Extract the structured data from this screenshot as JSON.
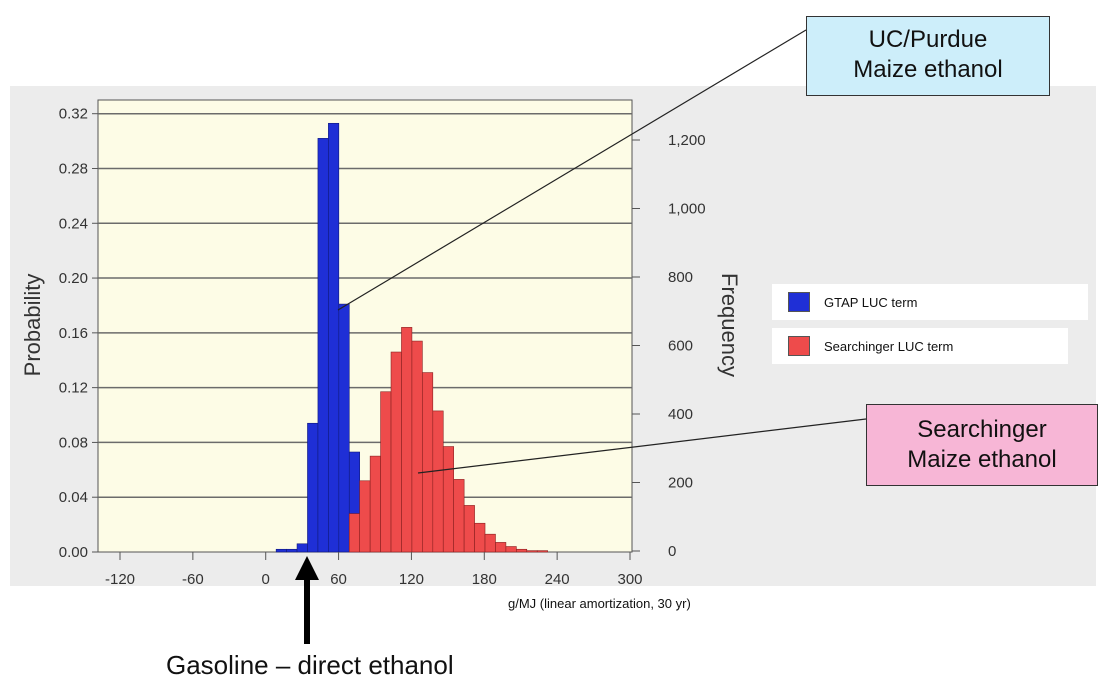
{
  "chart_data": {
    "type": "bar",
    "x_ticks": [
      "-120",
      "-60",
      "0",
      "60",
      "120",
      "180",
      "240",
      "300"
    ],
    "x_range": [
      -120,
      300
    ],
    "xlabel": "g/MJ (linear amortization, 30 yr)",
    "y_left": {
      "label": "Probability",
      "range": [
        0,
        0.33
      ],
      "ticks": [
        "0.00",
        "0.04",
        "0.08",
        "0.12",
        "0.16",
        "0.20",
        "0.24",
        "0.28",
        "0.32"
      ]
    },
    "y_right": {
      "label": "Frequency",
      "ticks": [
        "0",
        "200",
        "400",
        "600",
        "800",
        "1,000",
        "1,200"
      ]
    },
    "grid": "horizontal",
    "bin_width": 8.6,
    "series": [
      {
        "name": "GTAP LUC term",
        "color": "#1f2fd6",
        "bins": [
          {
            "x": 12.9,
            "y": 0.002
          },
          {
            "x": 21.5,
            "y": 0.002
          },
          {
            "x": 30.1,
            "y": 0.006
          },
          {
            "x": 38.7,
            "y": 0.094
          },
          {
            "x": 47.3,
            "y": 0.302
          },
          {
            "x": 55.9,
            "y": 0.313
          },
          {
            "x": 64.5,
            "y": 0.181
          },
          {
            "x": 73.1,
            "y": 0.073
          },
          {
            "x": 81.7,
            "y": 0.015
          }
        ]
      },
      {
        "name": "Searchinger LUC term",
        "color": "#ee4b4b",
        "bins": [
          {
            "x": 73.1,
            "y": 0.028
          },
          {
            "x": 81.7,
            "y": 0.052
          },
          {
            "x": 90.3,
            "y": 0.07
          },
          {
            "x": 98.9,
            "y": 0.117
          },
          {
            "x": 107.5,
            "y": 0.146
          },
          {
            "x": 116.1,
            "y": 0.164
          },
          {
            "x": 124.7,
            "y": 0.154
          },
          {
            "x": 133.3,
            "y": 0.131
          },
          {
            "x": 141.9,
            "y": 0.103
          },
          {
            "x": 150.5,
            "y": 0.077
          },
          {
            "x": 159.1,
            "y": 0.053
          },
          {
            "x": 167.7,
            "y": 0.034
          },
          {
            "x": 176.3,
            "y": 0.021
          },
          {
            "x": 184.9,
            "y": 0.013
          },
          {
            "x": 193.5,
            "y": 0.007
          },
          {
            "x": 202.1,
            "y": 0.004
          },
          {
            "x": 210.7,
            "y": 0.002
          },
          {
            "x": 219.3,
            "y": 0.001
          },
          {
            "x": 227.9,
            "y": 0.001
          }
        ]
      }
    ]
  },
  "legend": {
    "items": [
      {
        "label": "GTAP LUC term",
        "color": "#1f2fd6"
      },
      {
        "label": "Searchinger LUC term",
        "color": "#ee4b4b"
      }
    ]
  },
  "annotations": {
    "purdue": {
      "line1": "UC/Purdue",
      "line2": "Maize ethanol"
    },
    "searchinger": {
      "line1": "Searchinger",
      "line2": "Maize ethanol"
    },
    "gasoline": "Gasoline – direct ethanol"
  },
  "colors": {
    "plot_bg": "#fdfce6",
    "panel_bg": "#ececec",
    "purdue_box": "#cdeefa",
    "searchinger_box": "#f7b6d6"
  }
}
